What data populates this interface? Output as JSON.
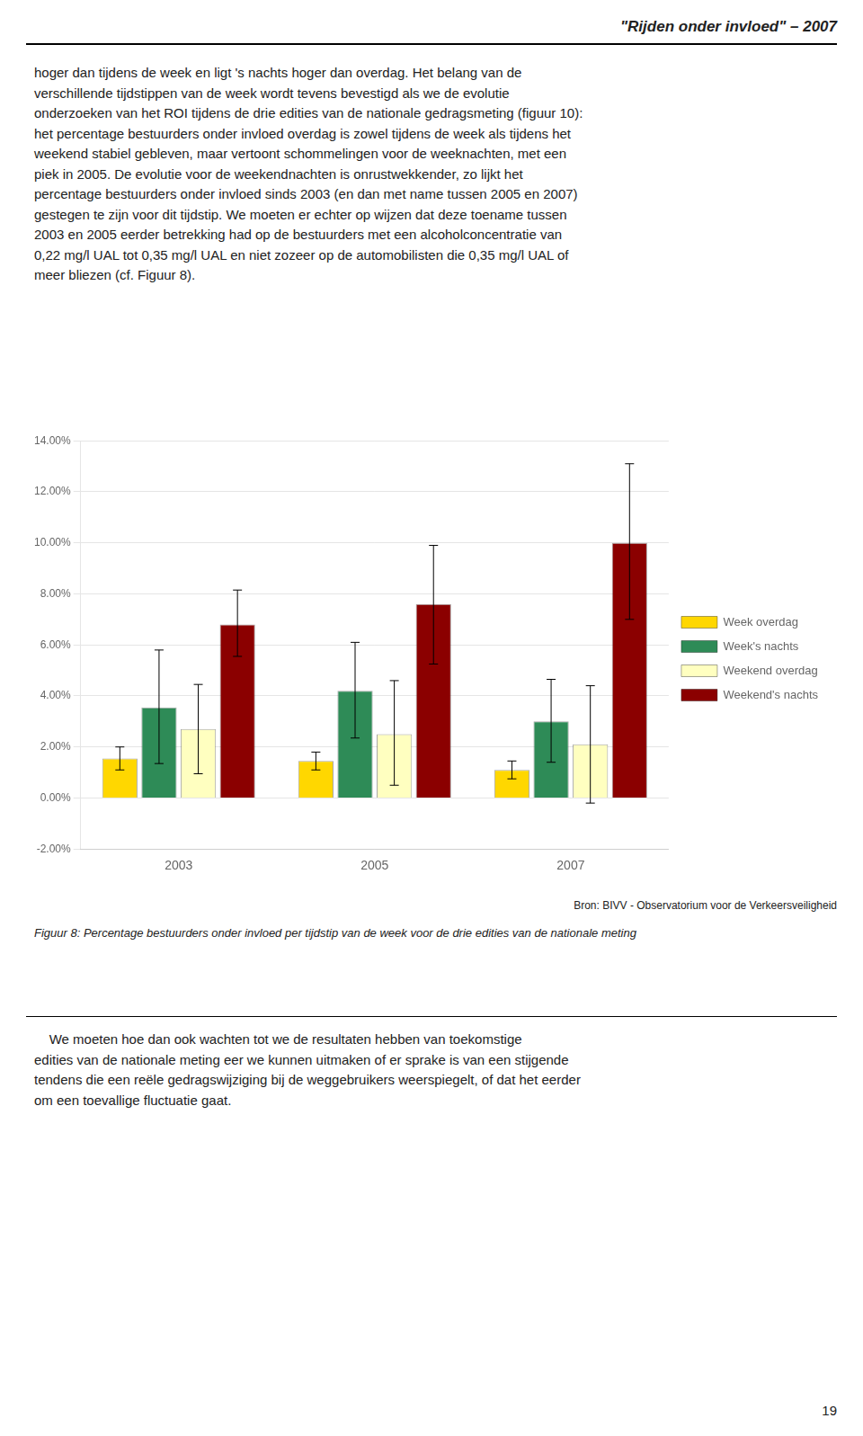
{
  "chart_data": {
    "type": "bar",
    "title": "\"Rijden onder invloed\" – 2007",
    "categories": [
      "2003",
      "2005",
      "2007"
    ],
    "series": [
      {
        "name": "Week overdag",
        "color": "#FFD700",
        "values": [
          1.55,
          1.45,
          1.1
        ],
        "errors_low": [
          0.45,
          0.35,
          0.35
        ],
        "errors_high": [
          0.45,
          0.35,
          0.35
        ]
      },
      {
        "name": "Week's nachts",
        "color": "#2E8B57",
        "values": [
          3.55,
          4.2,
          3.0
        ],
        "errors_low": [
          2.2,
          1.85,
          1.6
        ],
        "errors_high": [
          2.25,
          1.9,
          1.65
        ]
      },
      {
        "name": "Weekend overdag",
        "color": "#FFFFC0",
        "values": [
          2.7,
          2.5,
          2.1
        ],
        "errors_low": [
          1.75,
          2.0,
          2.3
        ],
        "errors_high": [
          1.75,
          2.1,
          2.3
        ]
      },
      {
        "name": "Weekend's nachts",
        "color": "#8B0000",
        "values": [
          6.8,
          7.6,
          10.0
        ],
        "errors_low": [
          1.25,
          2.35,
          3.0
        ],
        "errors_high": [
          1.35,
          2.3,
          3.1
        ]
      }
    ],
    "ylim": [
      -2,
      14
    ],
    "yticks": [
      {
        "value": -2,
        "label": "-2.00%"
      },
      {
        "value": 0,
        "label": "0.00%"
      },
      {
        "value": 2,
        "label": "2.00%"
      },
      {
        "value": 4,
        "label": "4.00%"
      },
      {
        "value": 6,
        "label": "6.00%"
      },
      {
        "value": 8,
        "label": "8.00%"
      },
      {
        "value": 10,
        "label": "10.00%"
      },
      {
        "value": 12,
        "label": "12.00%"
      },
      {
        "value": 14,
        "label": "14.00%"
      }
    ],
    "grid": true,
    "legend": "right",
    "annotations": [
      "hoger dan tijdens de week en ligt 's nachts hoger dan overdag. Het belang van de\nverschillende tijdstippen van de week wordt tevens bevestigd als we de evolutie\nonderzoeken van het ROI tijdens de drie edities van de nationale gedragsmeting (figuur 10):\nhet percentage bestuurders onder invloed overdag is zowel tijdens de week als tijdens het\nweekend stabiel gebleven, maar vertoont schommelingen voor de weeknachten, met een\npiek in 2005. De evolutie voor de weekendnachten is onrustwekkender, zo lijkt het\npercentage bestuurders onder invloed sinds 2003 (en dan met name tussen 2005 en 2007)\ngestegen te zijn voor dit tijdstip. We moeten er echter op wijzen dat deze toename tussen\n2003 en 2005 eerder betrekking had op de bestuurders met een alcoholconcentratie van\n0,22 mg/l UAL tot 0,35 mg/l UAL en niet zozeer op de automobilisten die 0,35 mg/l UAL of\nmeer bliezen (cf. Figuur 8).",
      "Bron: BIVV - Observatorium voor de Verkeersveiligheid",
      "Figuur 8: Percentage bestuurders onder invloed per tijdstip van de week voor de drie edities van de nationale meting",
      "    We moeten hoe dan ook wachten tot we de resultaten hebben van toekomstige\nedities van de nationale meting eer we kunnen uitmaken of er sprake is van een stijgende\ntendens die een reële gedragswijziging bij de weggebruikers weerspiegelt, of dat het eerder\nom een toevallige fluctuatie gaat.",
      "19"
    ]
  }
}
